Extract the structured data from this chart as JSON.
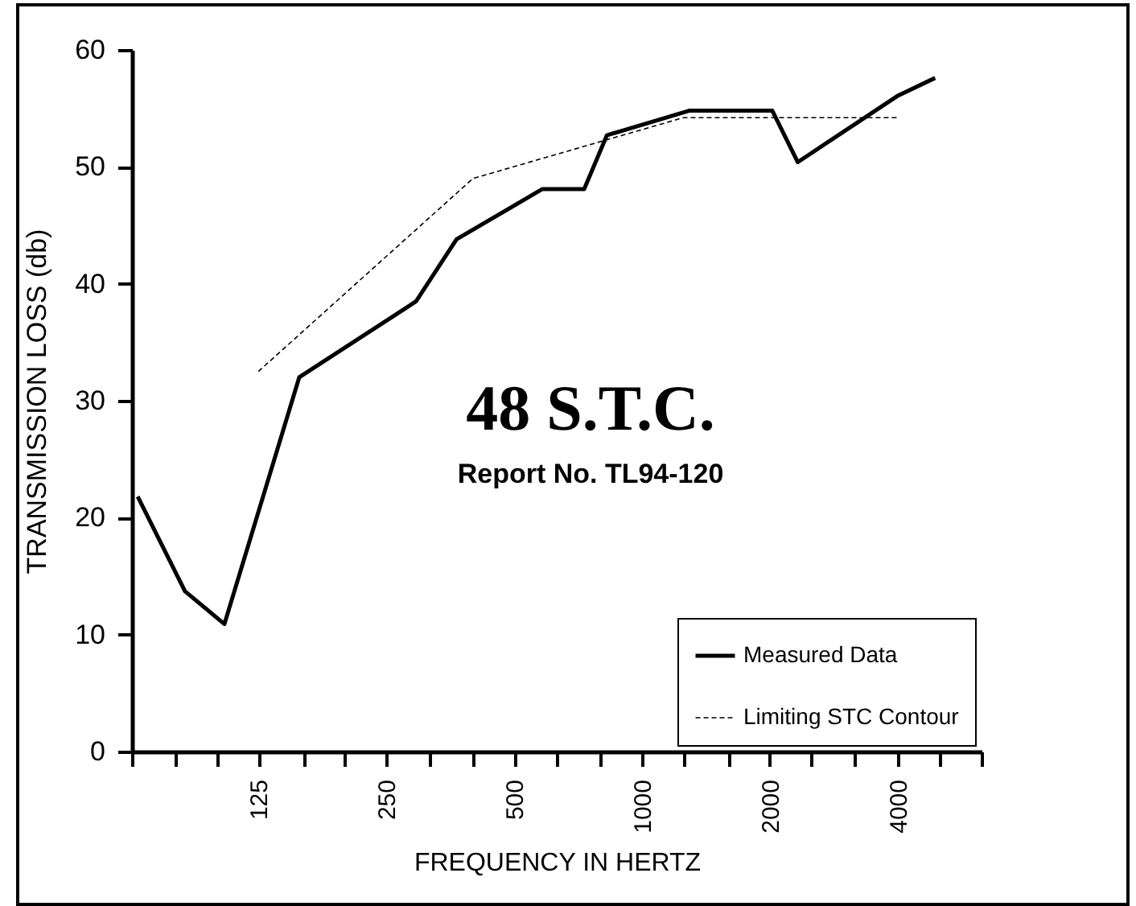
{
  "chart_data": {
    "type": "line",
    "xlabel": "FREQUENCY IN HERTZ",
    "ylabel": "TRANSMISSION LOSS (db)",
    "annotations": [
      "48 S.T.C.",
      "Report No. TL94-120"
    ],
    "log": "x",
    "xlim": [
      63,
      6300
    ],
    "xticks": [
      {
        "value": 63,
        "label": null
      },
      {
        "value": 80,
        "label": null
      },
      {
        "value": 100,
        "label": null
      },
      125,
      {
        "value": 160,
        "label": null
      },
      {
        "value": 200,
        "label": null
      },
      250,
      {
        "value": 315,
        "label": null
      },
      {
        "value": 400,
        "label": null
      },
      500,
      {
        "value": 630,
        "label": null
      },
      {
        "value": 800,
        "label": null
      },
      1000,
      {
        "value": 1250,
        "label": null
      },
      {
        "value": 1600,
        "label": null
      },
      2000,
      {
        "value": 2500,
        "label": null
      },
      {
        "value": 3150,
        "label": null
      },
      4000,
      {
        "value": 5000,
        "label": null
      },
      {
        "value": 6300,
        "label": null
      }
    ],
    "ylim": [
      0,
      60
    ],
    "yticks": [
      0,
      10,
      20,
      30,
      40,
      50,
      60
    ],
    "grid": false,
    "legend": "bottom right",
    "marker": "none",
    "series": [
      {
        "name": "Measured Data",
        "color": "#000000",
        "line_style": "solid",
        "x": [
          65,
          84,
          104,
          156,
          294,
          366,
          583,
          731,
          827,
          1291,
          2027,
          2327,
          4011,
          4899
        ],
        "values": [
          21.8,
          13.7,
          10.9,
          32.0,
          38.5,
          43.8,
          48.1,
          48.1,
          52.7,
          54.8,
          54.8,
          50.4,
          56.1,
          57.6
        ]
      },
      {
        "name": "Limiting STC Contour",
        "color": "#000000",
        "line_style": "dashed",
        "x": [
          125,
          400,
          1250,
          4000
        ],
        "values": [
          32.5,
          49,
          54.2,
          54.2
        ]
      }
    ]
  }
}
